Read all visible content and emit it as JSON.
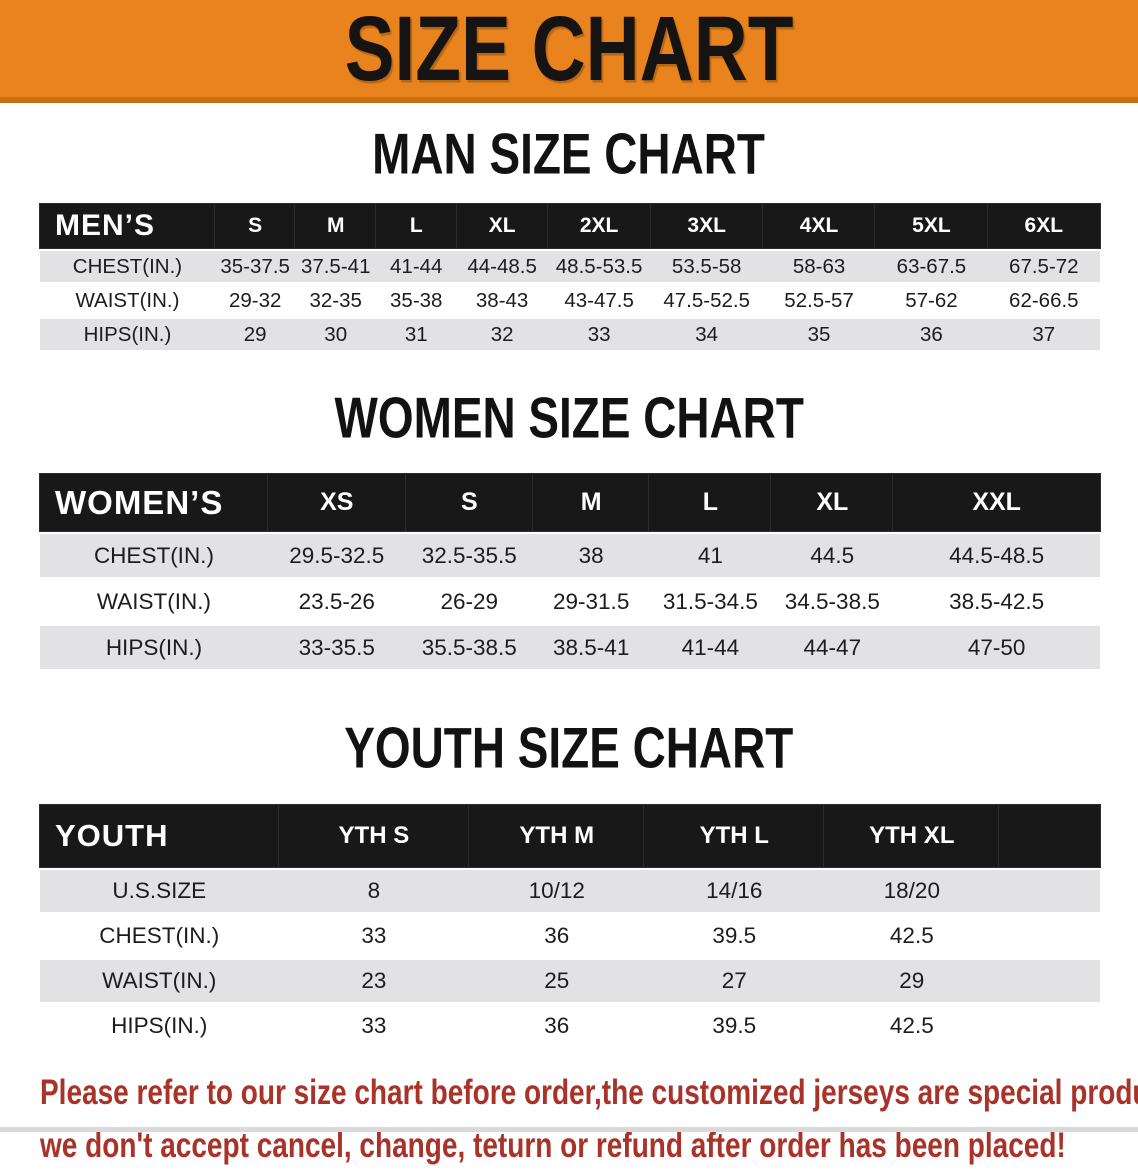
{
  "banner": {
    "title": "SIZE CHART"
  },
  "colors": {
    "banner_orange": "#E8831D",
    "banner_edge_orange": "#C96F10",
    "table_header_black": "#181818",
    "row_stripe_gray": "#E2E2E4",
    "disclaimer_red": "#A93229"
  },
  "sections": {
    "men": {
      "heading": "MAN SIZE CHART",
      "table": {
        "label": "MEN’S",
        "columns": [
          "S",
          "M",
          "L",
          "XL",
          "2XL",
          "3XL",
          "4XL",
          "5XL",
          "6XL"
        ],
        "rows": [
          {
            "label": "CHEST(IN.)",
            "values": [
              "35-37.5",
              "37.5-41",
              "41-44",
              "44-48.5",
              "48.5-53.5",
              "53.5-58",
              "58-63",
              "63-67.5",
              "67.5-72"
            ]
          },
          {
            "label": "WAIST(IN.)",
            "values": [
              "29-32",
              "32-35",
              "35-38",
              "38-43",
              "43-47.5",
              "47.5-52.5",
              "52.5-57",
              "57-62",
              "62-66.5"
            ]
          },
          {
            "label": "HIPS(IN.)",
            "values": [
              "29",
              "30",
              "31",
              "32",
              "33",
              "34",
              "35",
              "36",
              "37"
            ]
          }
        ]
      }
    },
    "women": {
      "heading": "WOMEN SIZE CHART",
      "table": {
        "label": "WOMEN’S",
        "columns": [
          "XS",
          "S",
          "M",
          "L",
          "XL",
          "XXL"
        ],
        "rows": [
          {
            "label": "CHEST(IN.)",
            "values": [
              "29.5-32.5",
              "32.5-35.5",
              "38",
              "41",
              "44.5",
              "44.5-48.5"
            ]
          },
          {
            "label": "WAIST(IN.)",
            "values": [
              "23.5-26",
              "26-29",
              "29-31.5",
              "31.5-34.5",
              "34.5-38.5",
              "38.5-42.5"
            ]
          },
          {
            "label": "HIPS(IN.)",
            "values": [
              "33-35.5",
              "35.5-38.5",
              "38.5-41",
              "41-44",
              "44-47",
              "47-50"
            ]
          }
        ]
      }
    },
    "youth": {
      "heading": "YOUTH SIZE CHART",
      "table": {
        "label": "YOUTH",
        "columns": [
          "YTH S",
          "YTH M",
          "YTH L",
          "YTH XL"
        ],
        "rows": [
          {
            "label": "U.S.SIZE",
            "values": [
              "8",
              "10/12",
              "14/16",
              "18/20"
            ]
          },
          {
            "label": "CHEST(IN.)",
            "values": [
              "33",
              "36",
              "39.5",
              "42.5"
            ]
          },
          {
            "label": "WAIST(IN.)",
            "values": [
              "23",
              "25",
              "27",
              "29"
            ]
          },
          {
            "label": "HIPS(IN.)",
            "values": [
              "33",
              "36",
              "39.5",
              "42.5"
            ]
          }
        ]
      }
    }
  },
  "disclaimer": {
    "line1": "Please refer to our size chart before order,the customized jerseys are special products,",
    "line2": "we don't accept cancel, change, teturn or refund after order has been placed!"
  }
}
